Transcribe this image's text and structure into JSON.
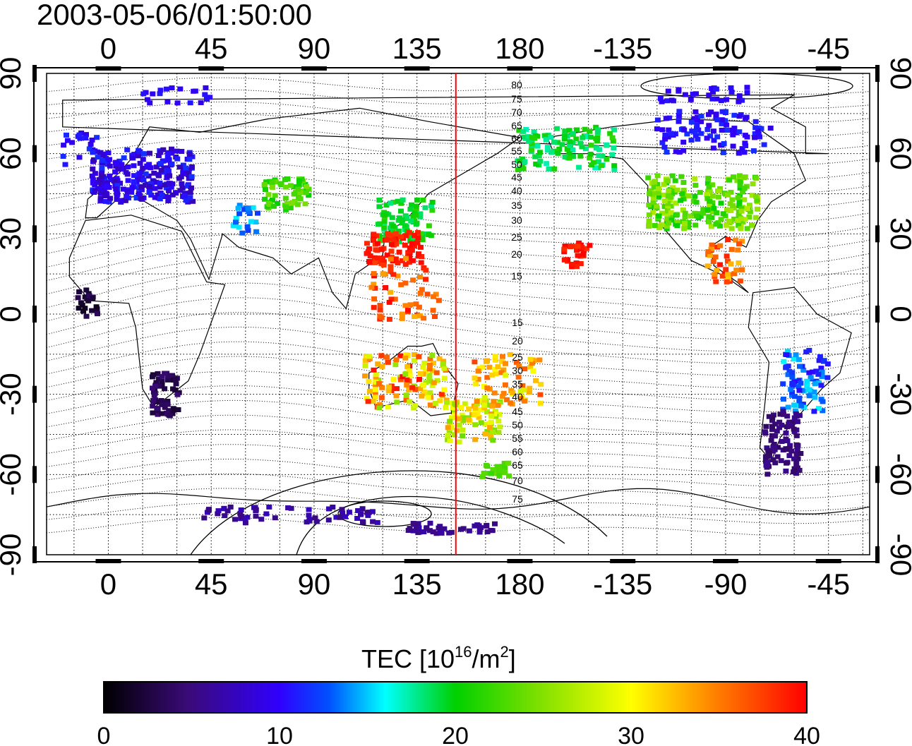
{
  "title": "2003-05-06/01:50:00",
  "map": {
    "top_lon_ticks": [
      "0",
      "45",
      "90",
      "135",
      "180",
      "-135",
      "-90",
      "-45"
    ],
    "bottom_lon_ticks": [
      "0",
      "45",
      "90",
      "135",
      "180",
      "-135",
      "-90",
      "-45"
    ],
    "left_lat_ticks": [
      "90",
      "60",
      "30",
      "0",
      "-30",
      "-60",
      "-90"
    ],
    "right_lat_ticks": [
      "90",
      "60",
      "30",
      "0",
      "-30",
      "-60",
      "-90"
    ],
    "meridian_marker_lon": 152,
    "contour_labels_upper": [
      "80",
      "75",
      "70",
      "65",
      "60",
      "55",
      "50",
      "45",
      "40",
      "35",
      "30",
      "25",
      "20",
      "15"
    ],
    "contour_labels_lower": [
      "15",
      "20",
      "25",
      "30",
      "35",
      "40",
      "45",
      "50",
      "55",
      "60",
      "65",
      "70",
      "75"
    ]
  },
  "colorbar": {
    "title": "TEC  [10",
    "title_sup": "16",
    "title_mid": "/m",
    "title_sup2": "2",
    "title_end": "]",
    "ticks": [
      "0",
      "10",
      "20",
      "30",
      "40"
    ],
    "range": [
      0,
      40
    ]
  },
  "colors": {
    "marker_line": "#ff0000",
    "background": "#ffffff"
  }
}
